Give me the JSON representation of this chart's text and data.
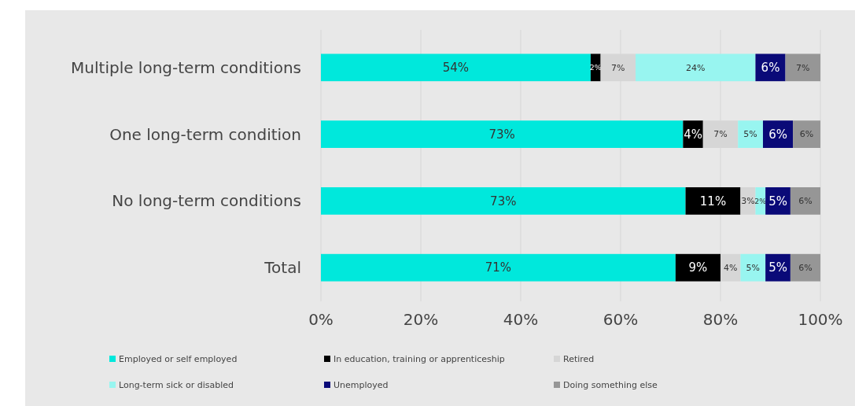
{
  "chart_data": {
    "type": "bar",
    "orientation": "horizontal",
    "stacked": true,
    "categories": [
      "Multiple long-term conditions",
      "One long-term condition",
      "No long-term conditions",
      "Total"
    ],
    "series": [
      {
        "name": "Employed or self employed",
        "color": "#00e8dc",
        "values": [
          54,
          72.5,
          73,
          71
        ],
        "value_labels": [
          "54%",
          "73%",
          "73%",
          "71%"
        ]
      },
      {
        "name": "In education, training or apprenticeship",
        "color": "#000000",
        "values": [
          2,
          4,
          11,
          9
        ],
        "value_labels": [
          "2%",
          "4%",
          "11%",
          "9%"
        ]
      },
      {
        "name": "Retired",
        "color": "#d6d6d6",
        "values": [
          7,
          7,
          3,
          4
        ],
        "value_labels": [
          "7%",
          "7%",
          "3%",
          "4%"
        ]
      },
      {
        "name": "Long-term sick or disabled",
        "color": "#98f5f0",
        "values": [
          24,
          5,
          2,
          5
        ],
        "value_labels": [
          "24%",
          "5%",
          "2%",
          "5%"
        ]
      },
      {
        "name": "Unemployed",
        "color": "#0a0a78",
        "values": [
          6,
          6,
          5,
          5
        ],
        "value_labels": [
          "6%",
          "6%",
          "5%",
          "5%"
        ]
      },
      {
        "name": "Doing something else",
        "color": "#969696",
        "values": [
          7,
          5.5,
          6,
          6
        ],
        "value_labels": [
          "7%",
          "6%",
          "6%",
          "6%"
        ]
      }
    ],
    "xlim": [
      0,
      100
    ],
    "xticks": [
      {
        "value": 0,
        "label": "0%"
      },
      {
        "value": 20,
        "label": "20%"
      },
      {
        "value": 40,
        "label": "40%"
      },
      {
        "value": 60,
        "label": "60%"
      },
      {
        "value": 80,
        "label": "80%"
      },
      {
        "value": 100,
        "label": "100%"
      }
    ],
    "grid": "x",
    "legend": "bottom"
  }
}
